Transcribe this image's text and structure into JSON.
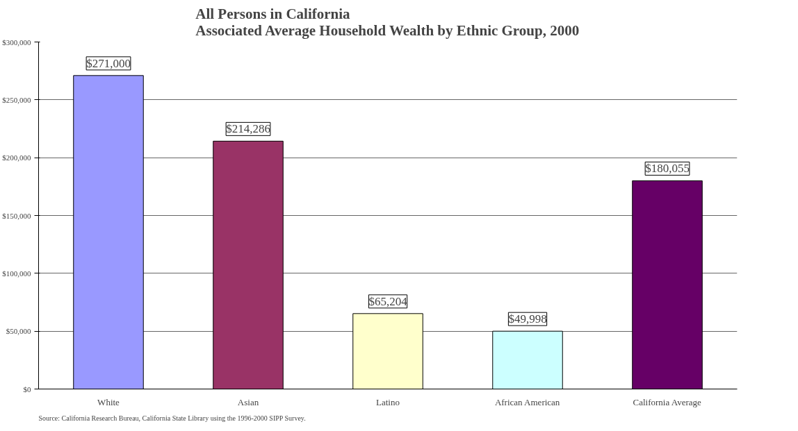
{
  "chart_data": {
    "type": "bar",
    "title": "All Persons in California\nAssociated Average Household Wealth by Ethnic Group, 2000",
    "categories": [
      "White",
      "Asian",
      "Latino",
      "African American",
      "California Average"
    ],
    "values": [
      271000,
      214286,
      65204,
      49998,
      180055
    ],
    "colors": [
      "#9999ff",
      "#993366",
      "#ffffcc",
      "#ccffff",
      "#660066"
    ],
    "value_labels": [
      "$271,000",
      "$214,286",
      "$65,204",
      "$49,998",
      "$180,055"
    ],
    "ylim": [
      0,
      300000
    ],
    "yticks": [
      {
        "value": 0,
        "label": "$0"
      },
      {
        "value": 50000,
        "label": "$50,000"
      },
      {
        "value": 100000,
        "label": "$100,000"
      },
      {
        "value": 150000,
        "label": "$150,000"
      },
      {
        "value": 200000,
        "label": "$200,000"
      },
      {
        "value": 250000,
        "label": "$250,000"
      },
      {
        "value": 300000,
        "label": "$300,000"
      }
    ],
    "grid": "y",
    "annotations": [
      "Source:  California Research Bureau, California State Library using the 1996-2000 SIPP Survey."
    ]
  }
}
